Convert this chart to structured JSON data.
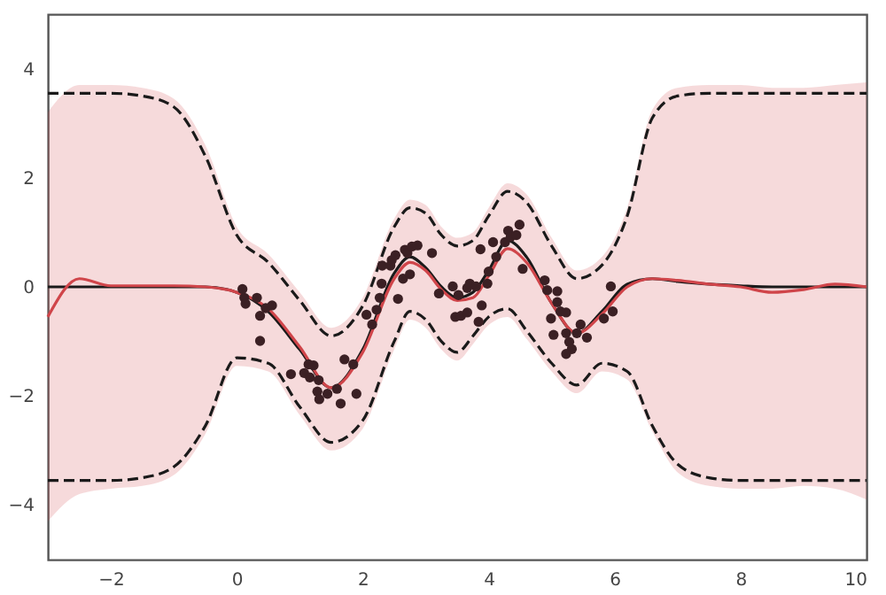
{
  "chart_data": {
    "type": "line",
    "xlim": [
      -3,
      10
    ],
    "ylim": [
      -5,
      5
    ],
    "xticks": [
      -2,
      0,
      2,
      4,
      6,
      8,
      10
    ],
    "yticks": [
      -4,
      -2,
      0,
      2,
      4
    ],
    "grid": false,
    "series": [
      {
        "color": "#d0454a",
        "line_style": "solid",
        "marker": "none",
        "x": [
          -3,
          -2.5,
          -2,
          -1.5,
          -1,
          -0.5,
          0,
          0.5,
          1,
          1.5,
          2,
          2.5,
          2.75,
          3,
          3.25,
          3.5,
          3.75,
          4,
          4.3,
          4.6,
          5,
          5.4,
          5.8,
          6.2,
          6.6,
          7,
          7.5,
          8,
          8.5,
          9,
          9.5,
          10
        ],
        "values": [
          -0.55,
          0.15,
          0.02,
          0.02,
          0.02,
          0,
          -0.1,
          -0.4,
          -1.1,
          -1.85,
          -1.2,
          0.15,
          0.45,
          0.3,
          -0.05,
          -0.25,
          -0.2,
          0.2,
          0.7,
          0.45,
          -0.3,
          -0.85,
          -0.5,
          0,
          0.15,
          0.12,
          0.05,
          0,
          -0.1,
          -0.05,
          0.05,
          0
        ],
        "upper": [
          3.2,
          3.7,
          3.7,
          3.65,
          3.45,
          2.6,
          1.1,
          0.6,
          -0.1,
          -0.75,
          -0.2,
          1.25,
          1.6,
          1.5,
          1.1,
          0.9,
          1.0,
          1.45,
          1.9,
          1.7,
          0.9,
          0.3,
          0.55,
          1.45,
          3.25,
          3.65,
          3.7,
          3.7,
          3.65,
          3.65,
          3.7,
          3.75
        ],
        "lower": [
          -4.3,
          -3.8,
          -3.7,
          -3.65,
          -3.45,
          -2.7,
          -1.45,
          -1.55,
          -2.35,
          -3.0,
          -2.6,
          -1.15,
          -0.6,
          -0.75,
          -1.15,
          -1.35,
          -1.05,
          -0.7,
          -0.55,
          -0.95,
          -1.55,
          -1.95,
          -1.55,
          -1.7,
          -2.65,
          -3.4,
          -3.65,
          -3.7,
          -3.7,
          -3.65,
          -3.7,
          -3.9
        ]
      },
      {
        "color": "#1a1a1a",
        "line_style": "solid",
        "marker": "none",
        "x": [
          -3,
          -2.5,
          -2,
          -1.5,
          -1,
          -0.5,
          0,
          0.5,
          1,
          1.5,
          2,
          2.5,
          2.75,
          3,
          3.25,
          3.5,
          3.75,
          4,
          4.3,
          4.6,
          5,
          5.4,
          5.8,
          6.2,
          6.6,
          7,
          7.5,
          8,
          8.5,
          9,
          9.5,
          10
        ],
        "values": [
          0,
          0,
          0,
          0,
          0,
          0,
          -0.1,
          -0.45,
          -1.15,
          -1.85,
          -1.15,
          0.25,
          0.55,
          0.35,
          0,
          -0.2,
          -0.1,
          0.3,
          0.85,
          0.55,
          -0.3,
          -0.85,
          -0.45,
          0.05,
          0.15,
          0.1,
          0.05,
          0.02,
          0,
          0,
          0,
          0
        ]
      },
      {
        "color": "#1a1a1a",
        "line_style": "dashed",
        "marker": "none",
        "x": [
          -3,
          -2.5,
          -2,
          -1.5,
          -1,
          -0.5,
          0,
          0.5,
          1,
          1.5,
          2,
          2.5,
          2.75,
          3,
          3.25,
          3.5,
          3.75,
          4,
          4.3,
          4.6,
          5,
          5.4,
          5.8,
          6.2,
          6.6,
          7,
          7.5,
          8,
          8.5,
          9,
          9.5,
          10
        ],
        "values": [
          3.55,
          3.55,
          3.55,
          3.5,
          3.3,
          2.4,
          0.95,
          0.45,
          -0.25,
          -0.9,
          -0.35,
          1.1,
          1.45,
          1.35,
          0.95,
          0.75,
          0.85,
          1.3,
          1.75,
          1.55,
          0.75,
          0.15,
          0.4,
          1.3,
          3.1,
          3.5,
          3.55,
          3.55,
          3.55,
          3.55,
          3.55,
          3.55
        ]
      },
      {
        "color": "#1a1a1a",
        "line_style": "dashed",
        "marker": "none",
        "x": [
          -3,
          -2.5,
          -2,
          -1.5,
          -1,
          -0.5,
          0,
          0.5,
          1,
          1.5,
          2,
          2.5,
          2.75,
          3,
          3.25,
          3.5,
          3.75,
          4,
          4.3,
          4.6,
          5,
          5.4,
          5.8,
          6.2,
          6.6,
          7,
          7.5,
          8,
          8.5,
          9,
          9.5,
          10
        ],
        "values": [
          -3.55,
          -3.55,
          -3.55,
          -3.5,
          -3.3,
          -2.55,
          -1.3,
          -1.4,
          -2.2,
          -2.85,
          -2.45,
          -1.0,
          -0.45,
          -0.6,
          -1.0,
          -1.2,
          -0.9,
          -0.55,
          -0.4,
          -0.8,
          -1.4,
          -1.8,
          -1.4,
          -1.55,
          -2.55,
          -3.25,
          -3.5,
          -3.55,
          -3.55,
          -3.55,
          -3.55,
          -3.55
        ]
      },
      {
        "type": "scatter",
        "color": "#3b2024",
        "marker": "circle",
        "x": [
          0.09,
          0.12,
          0.14,
          0.32,
          0.37,
          0.46,
          0.56,
          0.37,
          0.86,
          1.07,
          1.14,
          1.22,
          1.16,
          1.3,
          1.28,
          1.31,
          1.44,
          1.59,
          1.65,
          1.71,
          1.9,
          1.85,
          2.06,
          2.15,
          2.22,
          2.27,
          2.3,
          2.31,
          2.44,
          2.46,
          2.52,
          2.56,
          2.64,
          2.67,
          2.71,
          2.78,
          2.75,
          2.87,
          3.1,
          3.21,
          3.43,
          3.52,
          3.66,
          3.7,
          3.47,
          3.56,
          3.66,
          3.8,
          3.89,
          3.84,
          3.98,
          4.0,
          3.87,
          4.12,
          4.07,
          4.26,
          4.31,
          4.35,
          4.44,
          4.49,
          4.54,
          4.89,
          4.93,
          5.09,
          5.09,
          4.99,
          5.14,
          5.23,
          5.23,
          5.03,
          5.28,
          5.4,
          5.46,
          5.56,
          5.32,
          5.23,
          5.83,
          5.97,
          5.94
        ],
        "values": [
          -0.04,
          -0.2,
          -0.31,
          -0.2,
          -0.53,
          -0.39,
          -0.34,
          -0.99,
          -1.6,
          -1.58,
          -1.42,
          -1.44,
          -1.66,
          -1.71,
          -1.92,
          -2.06,
          -1.96,
          -1.87,
          -2.14,
          -1.33,
          -1.96,
          -1.42,
          -0.51,
          -0.69,
          -0.42,
          -0.2,
          0.06,
          0.39,
          0.39,
          0.49,
          0.58,
          -0.22,
          0.15,
          0.68,
          0.62,
          0.74,
          0.23,
          0.76,
          0.62,
          -0.12,
          0.01,
          -0.15,
          -0.02,
          0.06,
          -0.55,
          -0.53,
          -0.47,
          0.01,
          -0.34,
          -0.64,
          0.06,
          0.28,
          0.69,
          0.55,
          0.82,
          0.82,
          1.03,
          0.92,
          0.95,
          1.14,
          0.33,
          0.12,
          -0.06,
          -0.08,
          -0.28,
          -0.58,
          -0.45,
          -0.47,
          -0.85,
          -0.88,
          -1.01,
          -0.85,
          -0.69,
          -0.93,
          -1.14,
          -1.23,
          -0.58,
          -0.45,
          0.01
        ]
      }
    ]
  }
}
